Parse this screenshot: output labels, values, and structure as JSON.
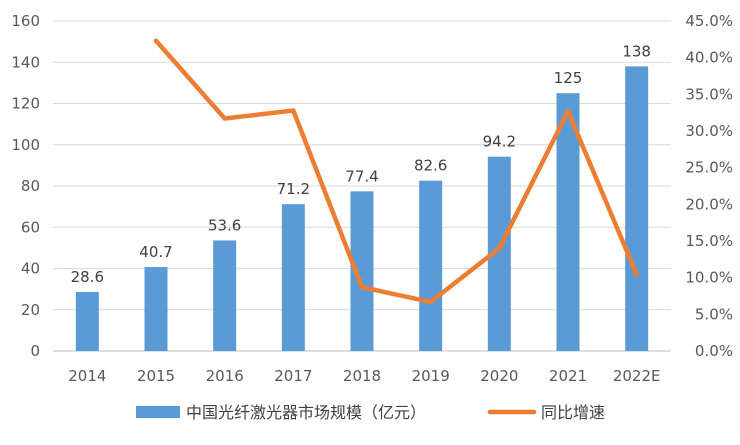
{
  "chart_data": {
    "type": "bar+line",
    "categories": [
      "2014",
      "2015",
      "2016",
      "2017",
      "2018",
      "2019",
      "2020",
      "2021",
      "2022E"
    ],
    "series": [
      {
        "name": "中国光纤激光器市场规模（亿元）",
        "type": "bar",
        "axis": "left",
        "values": [
          28.6,
          40.7,
          53.6,
          71.2,
          77.4,
          82.6,
          94.2,
          125,
          138
        ],
        "data_labels": [
          "28.6",
          "40.7",
          "53.6",
          "71.2",
          "77.4",
          "82.6",
          "94.2",
          "125",
          "138"
        ],
        "color": "#5B9BD5"
      },
      {
        "name": "同比增速",
        "type": "line",
        "axis": "right",
        "values": [
          null,
          42.3,
          31.7,
          32.8,
          8.7,
          6.7,
          14.0,
          32.7,
          10.4
        ],
        "color": "#ED7D31"
      }
    ],
    "y_left": {
      "range": [
        0,
        160
      ],
      "ticks": [
        0,
        20,
        40,
        60,
        80,
        100,
        120,
        140,
        160
      ],
      "tick_labels": [
        "0",
        "20",
        "40",
        "60",
        "80",
        "100",
        "120",
        "140",
        "160"
      ]
    },
    "y_right": {
      "range": [
        0,
        45
      ],
      "ticks": [
        0,
        5,
        10,
        15,
        20,
        25,
        30,
        35,
        40,
        45
      ],
      "tick_labels": [
        "0.0%",
        "5.0%",
        "10.0%",
        "15.0%",
        "20.0%",
        "25.0%",
        "30.0%",
        "35.0%",
        "40.0%",
        "45.0%"
      ]
    },
    "grid": true,
    "legend_position": "bottom",
    "colors": {
      "grid": "#D9D9D9",
      "axis": "#BFBFBF"
    }
  }
}
